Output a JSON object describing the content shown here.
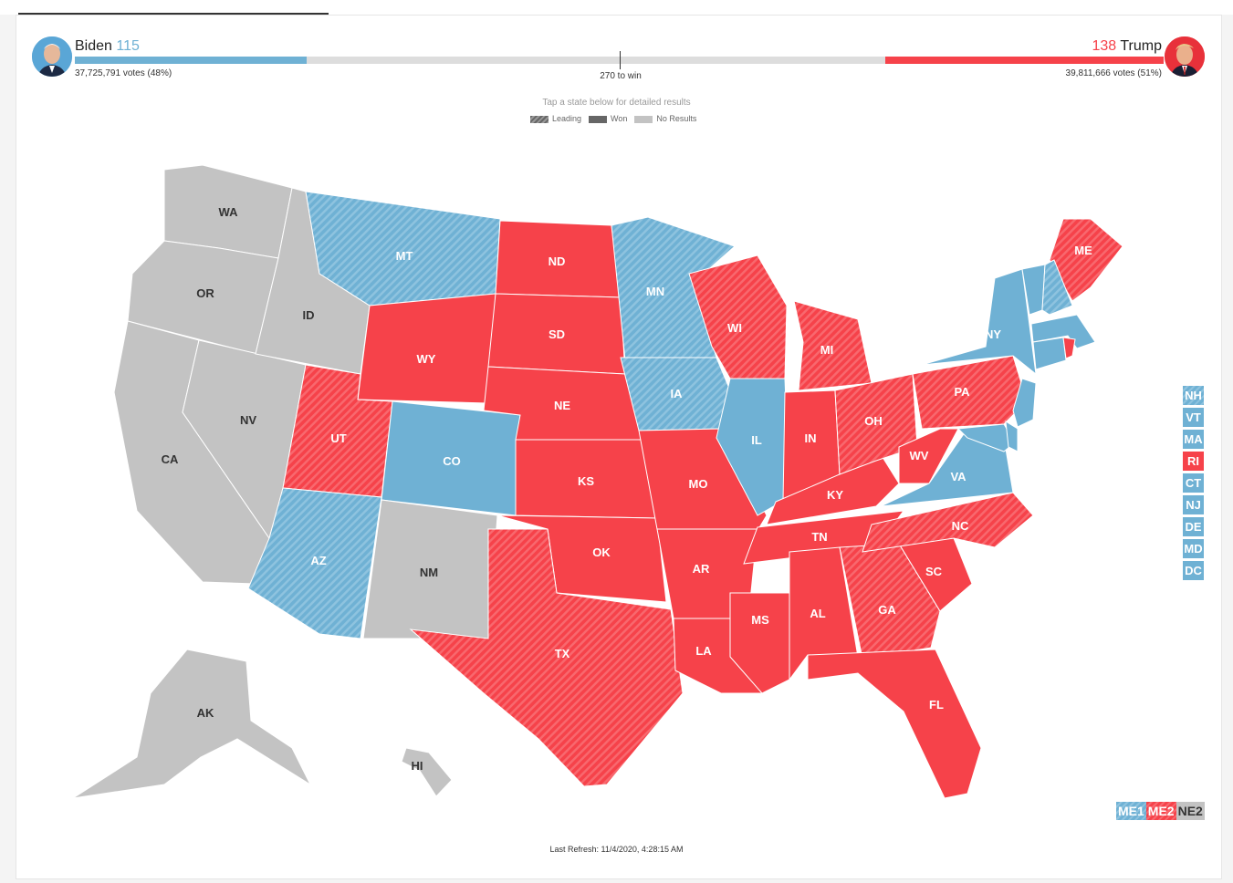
{
  "colors": {
    "biden": "#6fb1d4",
    "trump": "#f6424a",
    "none": "#c3c3c3",
    "bar_track": "#dddddd"
  },
  "biden": {
    "name": "Biden",
    "ev": "115",
    "votes": "37,725,791 votes (48%)",
    "ev_fraction": 0.213
  },
  "trump": {
    "name": "Trump",
    "ev": "138",
    "votes": "39,811,666 votes (51%)",
    "ev_fraction": 0.256
  },
  "win_label": "270 to win",
  "tap_hint": "Tap a state below for detailed results",
  "legend": {
    "leading": "Leading",
    "won": "Won",
    "none": "No Results"
  },
  "refresh": "Last Refresh: 11/4/2020, 4:28:15 AM",
  "states": [
    {
      "code": "WA",
      "status": "none"
    },
    {
      "code": "OR",
      "status": "none"
    },
    {
      "code": "CA",
      "status": "none"
    },
    {
      "code": "NV",
      "status": "none"
    },
    {
      "code": "ID",
      "status": "none"
    },
    {
      "code": "MT",
      "status": "biden-leading"
    },
    {
      "code": "WY",
      "status": "trump-won"
    },
    {
      "code": "UT",
      "status": "trump-leading"
    },
    {
      "code": "AZ",
      "status": "biden-leading"
    },
    {
      "code": "CO",
      "status": "biden-won"
    },
    {
      "code": "NM",
      "status": "none"
    },
    {
      "code": "ND",
      "status": "trump-won"
    },
    {
      "code": "SD",
      "status": "trump-won"
    },
    {
      "code": "NE",
      "status": "trump-won"
    },
    {
      "code": "KS",
      "status": "trump-won"
    },
    {
      "code": "OK",
      "status": "trump-won"
    },
    {
      "code": "TX",
      "status": "trump-leading"
    },
    {
      "code": "MN",
      "status": "biden-leading"
    },
    {
      "code": "IA",
      "status": "biden-leading"
    },
    {
      "code": "MO",
      "status": "trump-won"
    },
    {
      "code": "AR",
      "status": "trump-won"
    },
    {
      "code": "LA",
      "status": "trump-won"
    },
    {
      "code": "WI",
      "status": "trump-leading"
    },
    {
      "code": "IL",
      "status": "biden-won"
    },
    {
      "code": "MS",
      "status": "trump-won"
    },
    {
      "code": "MI",
      "status": "trump-leading"
    },
    {
      "code": "IN",
      "status": "trump-won"
    },
    {
      "code": "KY",
      "status": "trump-won"
    },
    {
      "code": "TN",
      "status": "trump-won"
    },
    {
      "code": "AL",
      "status": "trump-won"
    },
    {
      "code": "OH",
      "status": "trump-leading"
    },
    {
      "code": "GA",
      "status": "trump-leading"
    },
    {
      "code": "FL",
      "status": "trump-won"
    },
    {
      "code": "SC",
      "status": "trump-won"
    },
    {
      "code": "NC",
      "status": "trump-leading"
    },
    {
      "code": "WV",
      "status": "trump-won"
    },
    {
      "code": "VA",
      "status": "biden-won"
    },
    {
      "code": "PA",
      "status": "trump-leading"
    },
    {
      "code": "NY",
      "status": "biden-won"
    },
    {
      "code": "ME",
      "status": "trump-leading"
    },
    {
      "code": "AK",
      "status": "none"
    },
    {
      "code": "HI",
      "status": "none"
    }
  ],
  "small_states": [
    {
      "code": "NH",
      "status": "biden-leading"
    },
    {
      "code": "VT",
      "status": "biden-won"
    },
    {
      "code": "MA",
      "status": "biden-won"
    },
    {
      "code": "RI",
      "status": "trump-won"
    },
    {
      "code": "CT",
      "status": "biden-won"
    },
    {
      "code": "NJ",
      "status": "biden-won"
    },
    {
      "code": "DE",
      "status": "biden-won"
    },
    {
      "code": "MD",
      "status": "biden-won"
    },
    {
      "code": "DC",
      "status": "biden-won"
    }
  ],
  "districts": [
    {
      "code": "ME1",
      "status": "biden-leading"
    },
    {
      "code": "ME2",
      "status": "trump-leading"
    },
    {
      "code": "NE2",
      "status": "none"
    }
  ]
}
